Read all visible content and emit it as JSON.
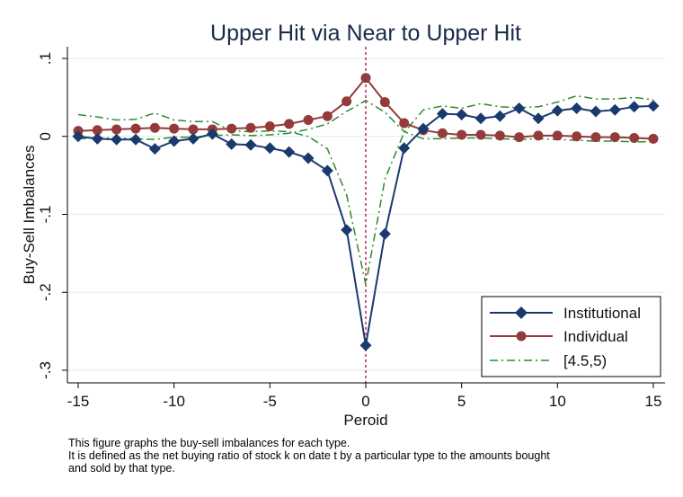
{
  "chart_data": {
    "type": "line",
    "title": "Upper Hit via Near to Upper Hit",
    "xlabel": "Peroid",
    "ylabel": "Buy-Sell Imbalances",
    "xlim": [
      -15,
      15
    ],
    "ylim": [
      -0.3,
      0.1
    ],
    "x_ticks": [
      -15,
      -10,
      -5,
      0,
      5,
      10,
      15
    ],
    "x_tick_labels": [
      "-15",
      "-10",
      "-5",
      "0",
      "5",
      "10",
      "15"
    ],
    "y_ticks": [
      0.1,
      0,
      -0.1,
      -0.2,
      -0.3
    ],
    "y_tick_labels": [
      ".1",
      "0",
      "-.1",
      "-.2",
      "-.3"
    ],
    "grid": "horizontal",
    "legend_position": "bottom-right",
    "reference_line_x": 0,
    "x": [
      -15,
      -14,
      -13,
      -12,
      -11,
      -10,
      -9,
      -8,
      -7,
      -6,
      -5,
      -4,
      -3,
      -2,
      -1,
      0,
      1,
      2,
      3,
      4,
      5,
      6,
      7,
      8,
      9,
      10,
      11,
      12,
      13,
      14,
      15
    ],
    "series": [
      {
        "name": "Institutional",
        "color": "#1a3a6e",
        "marker": "diamond",
        "values": [
          0.0,
          -0.003,
          -0.004,
          -0.004,
          -0.016,
          -0.006,
          -0.003,
          0.003,
          -0.01,
          -0.011,
          -0.015,
          -0.02,
          -0.028,
          -0.044,
          -0.12,
          -0.268,
          -0.125,
          -0.015,
          0.01,
          0.029,
          0.028,
          0.023,
          0.026,
          0.036,
          0.023,
          0.033,
          0.036,
          0.032,
          0.034,
          0.038,
          0.039
        ]
      },
      {
        "name": "Individual",
        "color": "#943a3a",
        "marker": "circle",
        "values": [
          0.007,
          0.008,
          0.009,
          0.01,
          0.011,
          0.01,
          0.009,
          0.009,
          0.01,
          0.011,
          0.013,
          0.016,
          0.021,
          0.026,
          0.045,
          0.075,
          0.044,
          0.017,
          0.008,
          0.004,
          0.002,
          0.002,
          0.001,
          -0.001,
          0.001,
          0.001,
          0.0,
          -0.001,
          -0.001,
          -0.002,
          -0.003
        ]
      },
      {
        "name": "[4.5,5)",
        "color": "#2e8b2e",
        "marker": "none",
        "dash": "dash-dot",
        "values": [
          0.028,
          0.025,
          0.021,
          0.022,
          0.03,
          0.021,
          0.019,
          0.019,
          0.007,
          0.006,
          0.007,
          0.006,
          0.0,
          -0.016,
          -0.075,
          -0.19,
          -0.055,
          0.005,
          0.034,
          0.039,
          0.036,
          0.042,
          0.038,
          0.037,
          0.038,
          0.044,
          0.052,
          0.048,
          0.048,
          0.05,
          0.047
        ]
      },
      {
        "name": "",
        "color": "#2e8b2e",
        "marker": "none",
        "dash": "dash-dot",
        "values": [
          -0.003,
          -0.002,
          -0.002,
          -0.003,
          -0.004,
          -0.001,
          -0.001,
          0.001,
          0.002,
          0.001,
          0.002,
          0.004,
          0.009,
          0.016,
          0.032,
          0.046,
          0.031,
          0.006,
          -0.003,
          -0.003,
          -0.002,
          -0.002,
          -0.003,
          -0.004,
          -0.003,
          -0.004,
          -0.005,
          -0.006,
          -0.006,
          -0.007,
          -0.007
        ]
      }
    ]
  },
  "note": {
    "line1": "This figure graphs the buy-sell imbalances for each type.",
    "line2": "It is defined as the net buying ratio of stock k on date t by a particular type to the amounts bought",
    "line3": "and sold by that type."
  }
}
